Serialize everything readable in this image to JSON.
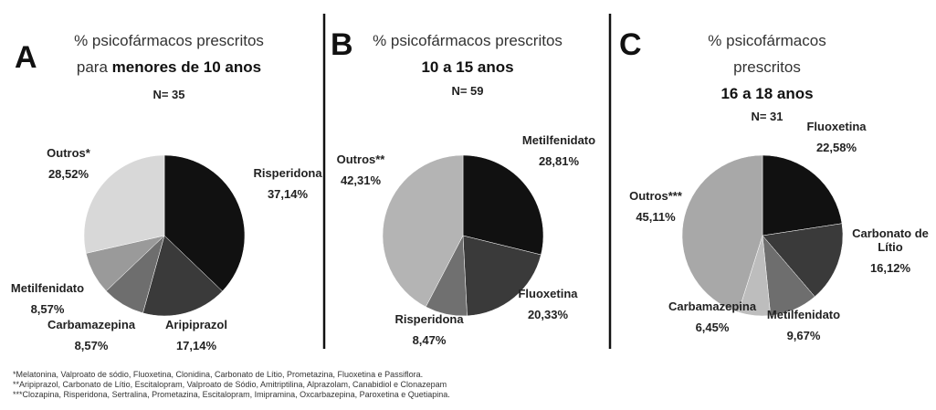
{
  "chart_data": [
    {
      "type": "pie",
      "panel": "A",
      "title": "% psicofármacos prescritos para",
      "title_bold": "menores de 10 anos",
      "subtitle": "N= 35",
      "categories": [
        "Risperidona",
        "Aripiprazol",
        "Carbamazepina",
        "Metilfenidato",
        "Outros*"
      ],
      "values": [
        37.14,
        17.14,
        8.57,
        8.57,
        28.52
      ],
      "value_labels": [
        "37,14%",
        "17,14%",
        "8,57%",
        "8,57%",
        "28,52%"
      ],
      "colors": [
        "#111111",
        "#3a3a3a",
        "#6e6e6e",
        "#9a9a9a",
        "#d8d8d8"
      ]
    },
    {
      "type": "pie",
      "panel": "B",
      "title": "% psicofármacos prescritos",
      "title_bold": "10 a 15 anos",
      "subtitle": "N= 59",
      "categories": [
        "Metilfenidato",
        "Fluoxetina",
        "Risperidona",
        "Outros**"
      ],
      "values": [
        28.81,
        20.33,
        8.47,
        42.31
      ],
      "value_labels": [
        "28,81%",
        "20,33%",
        "8,47%",
        "42,31%"
      ],
      "colors": [
        "#111111",
        "#3a3a3a",
        "#707070",
        "#b4b4b4"
      ]
    },
    {
      "type": "pie",
      "panel": "C",
      "title": "% psicofármacos prescritos",
      "title_bold": "16 a 18 anos",
      "subtitle": "N= 31",
      "categories": [
        "Fluoxetina",
        "Carbonato de Lítio",
        "Metilfenidato",
        "Carbamazepina",
        "Outros***"
      ],
      "values": [
        22.58,
        16.12,
        9.67,
        6.45,
        45.11
      ],
      "value_labels": [
        "22,58%",
        "16,12%",
        "9,67%",
        "6,45%",
        "45,11%"
      ],
      "colors": [
        "#111111",
        "#3a3a3a",
        "#6e6e6e",
        "#bdbdbd",
        "#a8a8a8"
      ]
    }
  ],
  "footnotes": [
    "*Melatonina, Valproato de sódio, Fluoxetina, Clonidina,  Carbonato de Lítio, Prometazina, Fluoxetina e Passiflora.",
    "**Aripiprazol, Carbonato de Lítio, Escitalopram, Valproato de Sódio, Amitriptilina, Alprazolam, Canabidiol e Clonazepam",
    "***Clozapina, Risperidona, Sertralina, Prometazina,  Escitalopram, Imipramina, Oxcarbazepina, Paroxetina e Quetiapina."
  ]
}
